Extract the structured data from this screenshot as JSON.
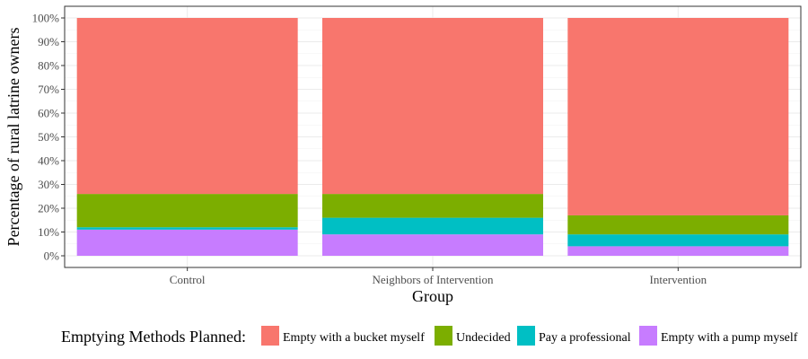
{
  "chart_data": {
    "type": "bar",
    "stacked": true,
    "categories": [
      "Control",
      "Neighbors of Intervention",
      "Intervention"
    ],
    "series": [
      {
        "name": "Empty with a pump myself",
        "color": "#C77CFF",
        "values": [
          0.11,
          0.09,
          0.04
        ]
      },
      {
        "name": "Pay a professional",
        "color": "#00BFC4",
        "values": [
          0.01,
          0.07,
          0.05
        ]
      },
      {
        "name": "Undecided",
        "color": "#7CAE00",
        "values": [
          0.14,
          0.1,
          0.08
        ]
      },
      {
        "name": "Empty with a bucket myself",
        "color": "#F8766D",
        "values": [
          0.74,
          0.74,
          0.83
        ]
      }
    ],
    "xlabel": "Group",
    "ylabel": "Percentage of rural latrine owners",
    "ylim": [
      0,
      1
    ],
    "yticks": [
      "0%",
      "10%",
      "20%",
      "30%",
      "40%",
      "50%",
      "60%",
      "70%",
      "80%",
      "90%",
      "100%"
    ],
    "grid": true,
    "legend": {
      "title": "Emptying Methods Planned:",
      "position": "bottom",
      "order": [
        "Empty with a bucket myself",
        "Undecided",
        "Pay a professional",
        "Empty with a pump myself"
      ]
    }
  }
}
